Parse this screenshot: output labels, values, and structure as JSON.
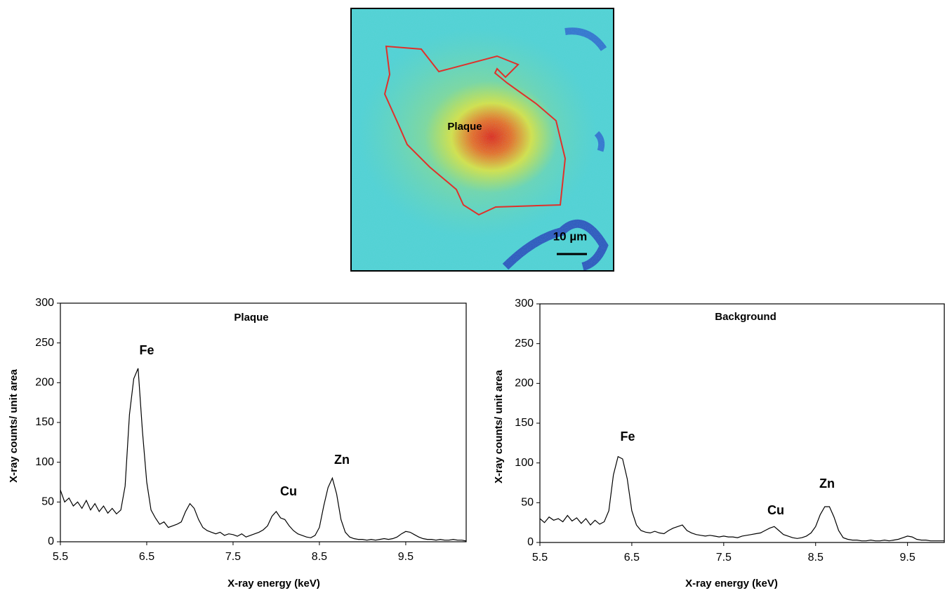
{
  "image": {
    "label": "Plaque",
    "scale_bar": "10 µm"
  },
  "chart_data": [
    {
      "type": "line",
      "title": "Plaque",
      "x_label": "X-ray energy (keV)",
      "y_label": "X-ray counts/ unit area",
      "annotations": [
        "Fe",
        "Cu",
        "Zn"
      ],
      "x": [
        5.5,
        5.55,
        5.6,
        5.65,
        5.7,
        5.75,
        5.8,
        5.85,
        5.9,
        5.95,
        6.0,
        6.05,
        6.1,
        6.15,
        6.2,
        6.25,
        6.3,
        6.35,
        6.4,
        6.45,
        6.5,
        6.55,
        6.6,
        6.65,
        6.7,
        6.75,
        6.8,
        6.85,
        6.9,
        6.95,
        7.0,
        7.05,
        7.1,
        7.15,
        7.2,
        7.25,
        7.3,
        7.35,
        7.4,
        7.45,
        7.5,
        7.55,
        7.6,
        7.65,
        7.7,
        7.75,
        7.8,
        7.85,
        7.9,
        7.95,
        8.0,
        8.05,
        8.1,
        8.15,
        8.2,
        8.25,
        8.3,
        8.35,
        8.4,
        8.45,
        8.5,
        8.55,
        8.6,
        8.65,
        8.7,
        8.75,
        8.8,
        8.85,
        8.9,
        8.95,
        9.0,
        9.05,
        9.1,
        9.15,
        9.2,
        9.25,
        9.3,
        9.35,
        9.4,
        9.45,
        9.5,
        9.55,
        9.6,
        9.65,
        9.7,
        9.75,
        9.8,
        9.85,
        9.9,
        9.95,
        10.0,
        10.05,
        10.1,
        10.15,
        10.2
      ],
      "series": [
        {
          "color": "#000000",
          "values": [
            65,
            50,
            55,
            45,
            50,
            42,
            52,
            40,
            48,
            38,
            45,
            36,
            42,
            35,
            40,
            70,
            160,
            205,
            218,
            140,
            75,
            40,
            30,
            22,
            25,
            18,
            20,
            22,
            25,
            38,
            48,
            42,
            28,
            18,
            14,
            12,
            10,
            12,
            8,
            10,
            9,
            7,
            10,
            6,
            8,
            10,
            12,
            15,
            20,
            32,
            38,
            30,
            28,
            20,
            14,
            10,
            8,
            6,
            5,
            8,
            18,
            45,
            68,
            80,
            60,
            28,
            12,
            6,
            4,
            3,
            3,
            2,
            3,
            2,
            3,
            4,
            3,
            4,
            6,
            10,
            13,
            12,
            9,
            6,
            4,
            3,
            3,
            2,
            3,
            2,
            2,
            3,
            2,
            2,
            1
          ]
        }
      ],
      "xlim": [
        5.5,
        10.2
      ],
      "ylim": [
        0,
        300
      ],
      "xticks": [
        5.5,
        6.5,
        7.5,
        8.5,
        9.5
      ],
      "yticks": [
        0,
        50,
        100,
        150,
        200,
        250,
        300
      ]
    },
    {
      "type": "line",
      "title": "Background",
      "x_label": "X-ray energy (keV)",
      "y_label": "X-ray counts/ unit area",
      "annotations": [
        "Fe",
        "Cu",
        "Zn"
      ],
      "x": [
        5.5,
        5.55,
        5.6,
        5.65,
        5.7,
        5.75,
        5.8,
        5.85,
        5.9,
        5.95,
        6.0,
        6.05,
        6.1,
        6.15,
        6.2,
        6.25,
        6.3,
        6.35,
        6.4,
        6.45,
        6.5,
        6.55,
        6.6,
        6.65,
        6.7,
        6.75,
        6.8,
        6.85,
        6.9,
        6.95,
        7.0,
        7.05,
        7.1,
        7.15,
        7.2,
        7.25,
        7.3,
        7.35,
        7.4,
        7.45,
        7.5,
        7.55,
        7.6,
        7.65,
        7.7,
        7.75,
        7.8,
        7.85,
        7.9,
        7.95,
        8.0,
        8.05,
        8.1,
        8.15,
        8.2,
        8.25,
        8.3,
        8.35,
        8.4,
        8.45,
        8.5,
        8.55,
        8.6,
        8.65,
        8.7,
        8.75,
        8.8,
        8.85,
        8.9,
        8.95,
        9.0,
        9.05,
        9.1,
        9.15,
        9.2,
        9.25,
        9.3,
        9.35,
        9.4,
        9.45,
        9.5,
        9.55,
        9.6,
        9.65,
        9.7,
        9.75,
        9.8,
        9.85,
        9.9
      ],
      "series": [
        {
          "color": "#000000",
          "values": [
            30,
            25,
            32,
            28,
            30,
            26,
            34,
            27,
            31,
            24,
            30,
            22,
            28,
            23,
            26,
            40,
            85,
            108,
            105,
            80,
            40,
            22,
            15,
            13,
            12,
            14,
            12,
            11,
            15,
            18,
            20,
            22,
            15,
            12,
            10,
            9,
            8,
            9,
            8,
            7,
            8,
            7,
            7,
            6,
            8,
            9,
            10,
            11,
            12,
            15,
            18,
            20,
            15,
            10,
            8,
            6,
            5,
            6,
            8,
            12,
            20,
            35,
            45,
            45,
            32,
            15,
            6,
            4,
            3,
            3,
            2,
            2,
            3,
            2,
            2,
            3,
            2,
            3,
            4,
            6,
            8,
            7,
            4,
            3,
            3,
            2,
            2,
            2,
            2
          ]
        }
      ],
      "xlim": [
        5.5,
        9.9
      ],
      "ylim": [
        0,
        300
      ],
      "xticks": [
        5.5,
        6.5,
        7.5,
        8.5,
        9.5
      ],
      "yticks": [
        0,
        50,
        100,
        150,
        200,
        250,
        300
      ]
    }
  ]
}
